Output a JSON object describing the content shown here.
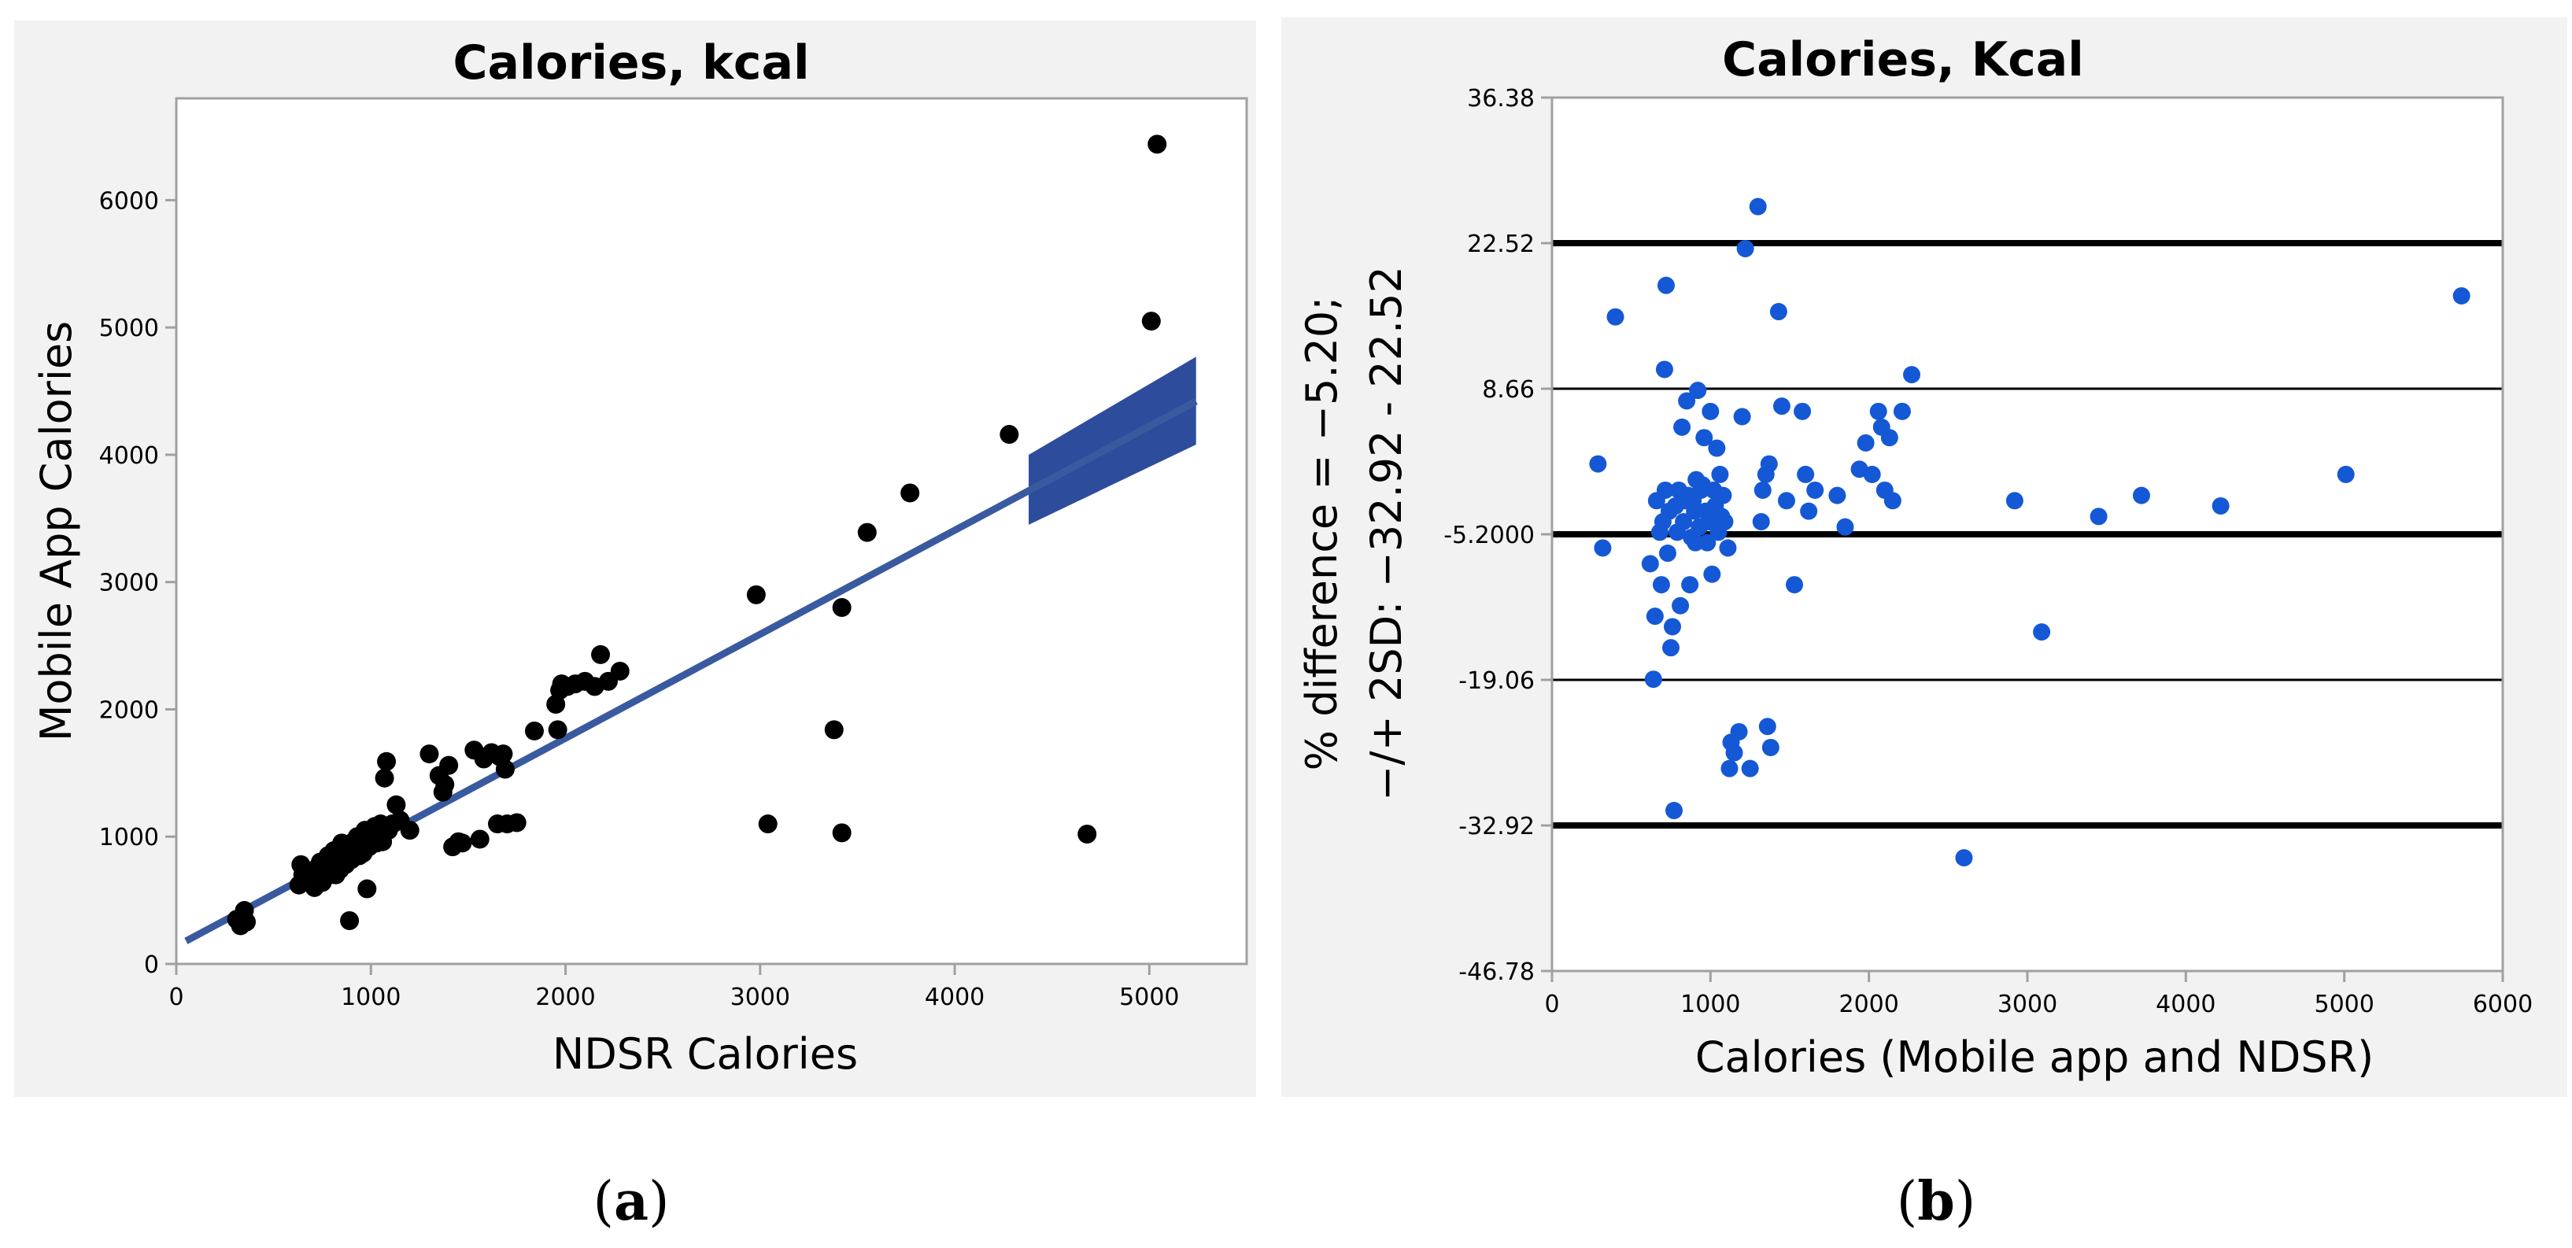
{
  "chart_data": [
    {
      "type": "scatter",
      "title": "Calories, kcal",
      "xlabel": "NDSR Calories",
      "ylabel": "Mobile App Calories",
      "xlim": [
        0,
        5500
      ],
      "ylim": [
        0,
        6800
      ],
      "xticks": [
        "0",
        "1000",
        "2000",
        "3000",
        "4000",
        "5000"
      ],
      "yticks": [
        "0",
        "1000",
        "2000",
        "3000",
        "4000",
        "5000",
        "6000"
      ],
      "fit_line": {
        "x": [
          50,
          5240
        ],
        "y": [
          180,
          4420
        ]
      },
      "confidence_band": {
        "x": [
          4380,
          5240
        ],
        "y_lower": [
          3450,
          4080
        ],
        "y_upper": [
          4000,
          4770
        ]
      },
      "marker_color": "#000000",
      "line_color": "#3a5aa0",
      "band_color": "#2e4c9c",
      "points": [
        [
          310,
          350
        ],
        [
          330,
          300
        ],
        [
          350,
          420
        ],
        [
          360,
          330
        ],
        [
          630,
          620
        ],
        [
          640,
          780
        ],
        [
          650,
          700
        ],
        [
          670,
          660
        ],
        [
          700,
          720
        ],
        [
          710,
          600
        ],
        [
          720,
          750
        ],
        [
          730,
          680
        ],
        [
          740,
          800
        ],
        [
          750,
          640
        ],
        [
          760,
          720
        ],
        [
          780,
          850
        ],
        [
          790,
          700
        ],
        [
          800,
          760
        ],
        [
          810,
          890
        ],
        [
          820,
          700
        ],
        [
          830,
          800
        ],
        [
          840,
          740
        ],
        [
          850,
          950
        ],
        [
          860,
          820
        ],
        [
          870,
          780
        ],
        [
          880,
          880
        ],
        [
          890,
          340
        ],
        [
          900,
          820
        ],
        [
          910,
          960
        ],
        [
          920,
          900
        ],
        [
          930,
          1000
        ],
        [
          940,
          850
        ],
        [
          950,
          940
        ],
        [
          960,
          870
        ],
        [
          970,
          1050
        ],
        [
          980,
          590
        ],
        [
          990,
          920
        ],
        [
          1000,
          1000
        ],
        [
          1010,
          980
        ],
        [
          1020,
          1080
        ],
        [
          1030,
          950
        ],
        [
          1050,
          1100
        ],
        [
          1060,
          960
        ],
        [
          1070,
          1460
        ],
        [
          1080,
          1590
        ],
        [
          1090,
          1050
        ],
        [
          1110,
          1100
        ],
        [
          1130,
          1250
        ],
        [
          1150,
          1130
        ],
        [
          1200,
          1050
        ],
        [
          1300,
          1650
        ],
        [
          1350,
          1480
        ],
        [
          1370,
          1350
        ],
        [
          1380,
          1410
        ],
        [
          1400,
          1560
        ],
        [
          1420,
          920
        ],
        [
          1450,
          960
        ],
        [
          1470,
          950
        ],
        [
          1530,
          1680
        ],
        [
          1560,
          980
        ],
        [
          1580,
          1610
        ],
        [
          1620,
          1660
        ],
        [
          1650,
          1100
        ],
        [
          1660,
          1630
        ],
        [
          1680,
          1650
        ],
        [
          1690,
          1530
        ],
        [
          1700,
          1100
        ],
        [
          1750,
          1110
        ],
        [
          1840,
          1830
        ],
        [
          1950,
          2040
        ],
        [
          1960,
          1840
        ],
        [
          1970,
          2150
        ],
        [
          1980,
          2200
        ],
        [
          2010,
          2180
        ],
        [
          2050,
          2200
        ],
        [
          2100,
          2220
        ],
        [
          2150,
          2180
        ],
        [
          2180,
          2430
        ],
        [
          2220,
          2220
        ],
        [
          2280,
          2300
        ],
        [
          2980,
          2900
        ],
        [
          3040,
          1100
        ],
        [
          3380,
          1840
        ],
        [
          3420,
          2800
        ],
        [
          3420,
          1030
        ],
        [
          3550,
          3390
        ],
        [
          3770,
          3700
        ],
        [
          4280,
          4160
        ],
        [
          4680,
          1020
        ],
        [
          5010,
          5050
        ],
        [
          5040,
          6440
        ]
      ]
    },
    {
      "type": "scatter",
      "title": "Calories, Kcal",
      "xlabel": "Calories (Mobile app and NDSR)",
      "ylabel_line1": "% difference = −5.20;",
      "ylabel_line2": "−/+ 2SD: −32.92 - 22.52",
      "xlim": [
        0,
        6000
      ],
      "ylim": [
        -46.78,
        36.38
      ],
      "xticks": [
        "0",
        "1000",
        "2000",
        "3000",
        "4000",
        "5000",
        "6000"
      ],
      "yticks": [
        "36.38",
        "22.52",
        "8.66",
        "-5.2000",
        "-19.06",
        "-32.92",
        "-46.78"
      ],
      "ytick_values": [
        36.38,
        22.52,
        8.66,
        -5.2,
        -19.06,
        -32.92,
        -46.78
      ],
      "mean_line": -5.2,
      "upper_limit": 22.52,
      "lower_limit": -32.92,
      "sd_lines": [
        8.66,
        -19.06
      ],
      "marker_color": "#1558d6",
      "points": [
        [
          290,
          1.5
        ],
        [
          320,
          -6.5
        ],
        [
          400,
          15.5
        ],
        [
          620,
          -8
        ],
        [
          640,
          -19
        ],
        [
          650,
          -13
        ],
        [
          660,
          -2
        ],
        [
          680,
          -5
        ],
        [
          690,
          -10
        ],
        [
          700,
          -4
        ],
        [
          710,
          10.5
        ],
        [
          715,
          -1
        ],
        [
          720,
          18.5
        ],
        [
          730,
          -7
        ],
        [
          740,
          -3
        ],
        [
          750,
          -16
        ],
        [
          760,
          -14
        ],
        [
          770,
          -31.5
        ],
        [
          780,
          -2.5
        ],
        [
          790,
          -5
        ],
        [
          800,
          -1
        ],
        [
          810,
          -12
        ],
        [
          820,
          5
        ],
        [
          830,
          -4
        ],
        [
          840,
          -2
        ],
        [
          850,
          7.5
        ],
        [
          860,
          -1.5
        ],
        [
          870,
          -10
        ],
        [
          880,
          -5.5
        ],
        [
          890,
          -2
        ],
        [
          900,
          -3
        ],
        [
          905,
          -6
        ],
        [
          910,
          0
        ],
        [
          920,
          8.5
        ],
        [
          930,
          -4.5
        ],
        [
          940,
          -1
        ],
        [
          950,
          -0.5
        ],
        [
          960,
          4
        ],
        [
          970,
          -3
        ],
        [
          980,
          -6
        ],
        [
          990,
          -4
        ],
        [
          1000,
          6.5
        ],
        [
          1010,
          -9
        ],
        [
          1020,
          -1
        ],
        [
          1030,
          -2.5
        ],
        [
          1040,
          3
        ],
        [
          1050,
          -5
        ],
        [
          1060,
          0.5
        ],
        [
          1070,
          -3.5
        ],
        [
          1080,
          -1.5
        ],
        [
          1090,
          -4
        ],
        [
          1110,
          -6.5
        ],
        [
          1120,
          -27.5
        ],
        [
          1130,
          -25
        ],
        [
          1150,
          -26
        ],
        [
          1180,
          -24
        ],
        [
          1200,
          6
        ],
        [
          1220,
          22
        ],
        [
          1250,
          -27.5
        ],
        [
          1300,
          26
        ],
        [
          1320,
          -4
        ],
        [
          1330,
          -1
        ],
        [
          1350,
          0.5
        ],
        [
          1360,
          -23.5
        ],
        [
          1370,
          1.5
        ],
        [
          1380,
          -25.5
        ],
        [
          1430,
          16
        ],
        [
          1450,
          7
        ],
        [
          1480,
          -2
        ],
        [
          1530,
          -10
        ],
        [
          1580,
          6.5
        ],
        [
          1600,
          0.5
        ],
        [
          1620,
          -3
        ],
        [
          1660,
          -1
        ],
        [
          1800,
          -1.5
        ],
        [
          1850,
          -4.5
        ],
        [
          1940,
          1
        ],
        [
          1980,
          3.5
        ],
        [
          2020,
          0.5
        ],
        [
          2060,
          6.5
        ],
        [
          2080,
          5
        ],
        [
          2100,
          -1
        ],
        [
          2130,
          4
        ],
        [
          2150,
          -2
        ],
        [
          2210,
          6.5
        ],
        [
          2270,
          10
        ],
        [
          2600,
          -36
        ],
        [
          2920,
          -2
        ],
        [
          3090,
          -14.5
        ],
        [
          3450,
          -3.5
        ],
        [
          3720,
          -1.5
        ],
        [
          4220,
          -2.5
        ],
        [
          5010,
          0.5
        ],
        [
          5740,
          17.5
        ]
      ]
    }
  ],
  "sublabels": [
    "(a)",
    "(b)"
  ],
  "sublabel_parts": [
    {
      "open": "(",
      "letter": "a",
      "close": ")"
    },
    {
      "open": "(",
      "letter": "b",
      "close": ")"
    }
  ]
}
